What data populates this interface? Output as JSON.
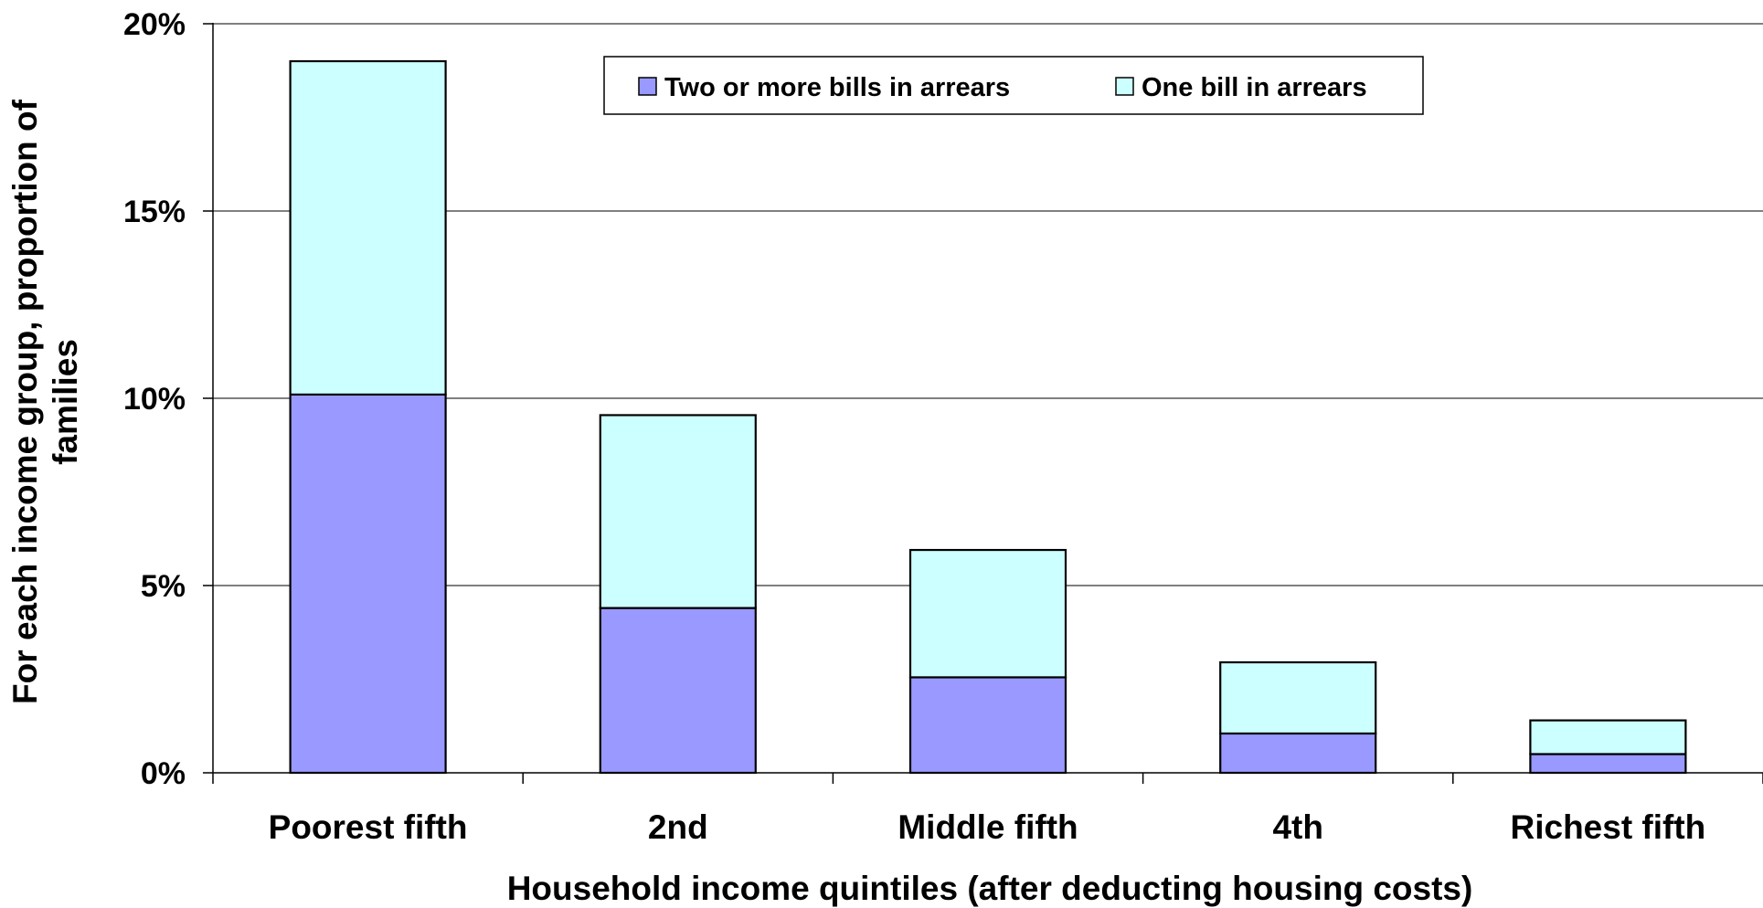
{
  "chart_data": {
    "type": "bar",
    "stacked": true,
    "categories": [
      "Poorest fifth",
      "2nd",
      "Middle fifth",
      "4th",
      "Richest fifth"
    ],
    "series": [
      {
        "name": "Two or more bills in arrears",
        "color": "#9999ff",
        "values": [
          10.1,
          4.4,
          2.55,
          1.05,
          0.5
        ]
      },
      {
        "name": "One bill in arrears",
        "color": "#ccffff",
        "values": [
          8.9,
          5.15,
          3.4,
          1.9,
          0.9
        ]
      }
    ],
    "xlabel": "Household income quintiles (after deducting housing costs)",
    "ylabel_lines": [
      "For each income group, proportion of",
      "families"
    ],
    "yticks": [
      "0%",
      "5%",
      "10%",
      "15%",
      "20%"
    ],
    "ylim": [
      0,
      20
    ],
    "grid": true,
    "legend_position": "top-center"
  }
}
